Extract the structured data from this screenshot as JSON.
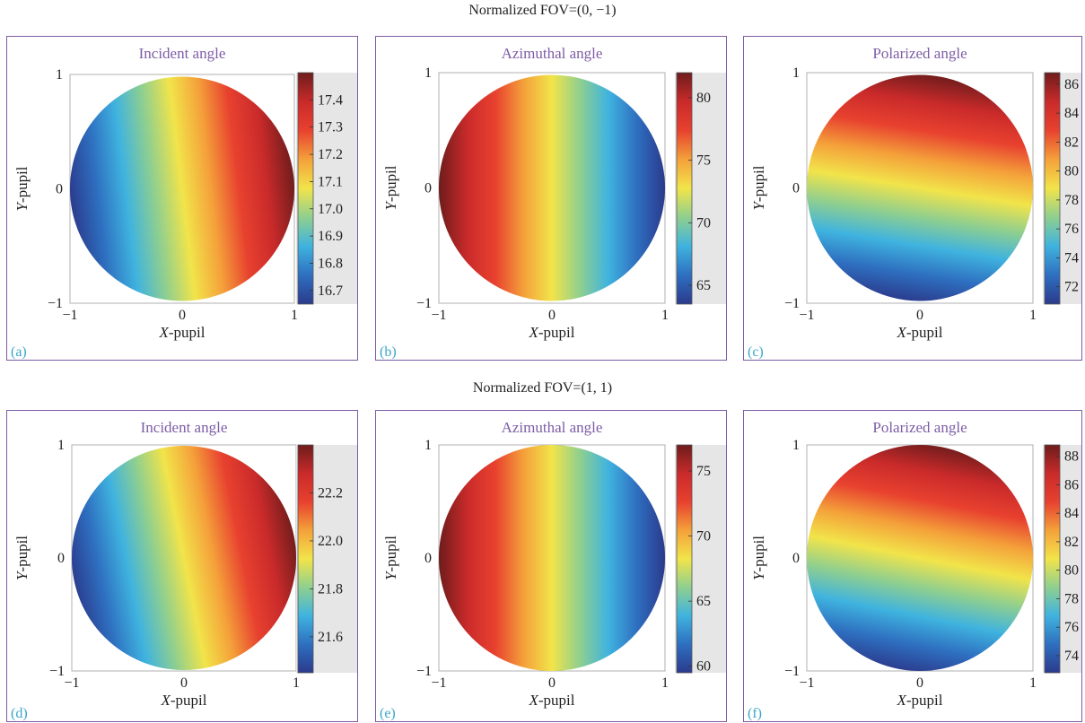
{
  "rows": [
    {
      "title": "Normalized FOV=(0, −1)"
    },
    {
      "title": "Normalized FOV=(1, 1)"
    }
  ],
  "chart_data": [
    {
      "type": "heatmap",
      "panel_label": "(a)",
      "title": "Incident angle",
      "xlabel_italic": "X",
      "xlabel_rest": "-pupil",
      "ylabel_italic": "Y",
      "ylabel_rest": "-pupil",
      "xlim": [
        -1,
        1
      ],
      "ylim": [
        -1,
        1
      ],
      "x_ticks": [
        "−1",
        "0",
        "1"
      ],
      "y_ticks": [
        "−1",
        "0",
        "1"
      ],
      "colorbar": {
        "min": 16.65,
        "max": 17.5,
        "ticks": [
          "16.7",
          "16.8",
          "16.9",
          "17.0",
          "17.1",
          "17.2",
          "17.3",
          "17.4"
        ],
        "tick_values": [
          16.7,
          16.8,
          16.9,
          17.0,
          17.1,
          17.2,
          17.3,
          17.4
        ]
      },
      "field": {
        "gradient": "x",
        "direction": "increasing",
        "tilt": 0.06
      }
    },
    {
      "type": "heatmap",
      "panel_label": "(b)",
      "title": "Azimuthal angle",
      "xlabel_italic": "X",
      "xlabel_rest": "-pupil",
      "ylabel_italic": "Y",
      "ylabel_rest": "-pupil",
      "xlim": [
        -1,
        1
      ],
      "ylim": [
        -1,
        1
      ],
      "x_ticks": [
        "−1",
        "0",
        "1"
      ],
      "y_ticks": [
        "−1",
        "0",
        "1"
      ],
      "colorbar": {
        "min": 63.5,
        "max": 82,
        "ticks": [
          "65",
          "70",
          "75",
          "80"
        ],
        "tick_values": [
          65,
          70,
          75,
          80
        ]
      },
      "field": {
        "gradient": "x",
        "direction": "decreasing",
        "tilt": 0.0
      }
    },
    {
      "type": "heatmap",
      "panel_label": "(c)",
      "title": "Polarized angle",
      "xlabel_italic": "X",
      "xlabel_rest": "-pupil",
      "ylabel_italic": "Y",
      "ylabel_rest": "-pupil",
      "xlim": [
        -1,
        1
      ],
      "ylim": [
        -1,
        1
      ],
      "x_ticks": [
        "−1",
        "0",
        "1"
      ],
      "y_ticks": [
        "−1",
        "0",
        "1"
      ],
      "colorbar": {
        "min": 70.8,
        "max": 86.8,
        "ticks": [
          "72",
          "74",
          "76",
          "78",
          "80",
          "82",
          "84",
          "86"
        ],
        "tick_values": [
          72,
          74,
          76,
          78,
          80,
          82,
          84,
          86
        ]
      },
      "field": {
        "gradient": "y",
        "direction": "increasing",
        "tilt": 0.08
      }
    },
    {
      "type": "heatmap",
      "panel_label": "(d)",
      "title": "Incident angle",
      "xlabel_italic": "X",
      "xlabel_rest": "-pupil",
      "ylabel_italic": "Y",
      "ylabel_rest": "-pupil",
      "xlim": [
        -1,
        1
      ],
      "ylim": [
        -1,
        1
      ],
      "x_ticks": [
        "−1",
        "0",
        "1"
      ],
      "y_ticks": [
        "−1",
        "0",
        "1"
      ],
      "colorbar": {
        "min": 21.45,
        "max": 22.4,
        "ticks": [
          "21.6",
          "21.8",
          "22.0",
          "22.2"
        ],
        "tick_values": [
          21.6,
          21.8,
          22.0,
          22.2
        ]
      },
      "field": {
        "gradient": "x",
        "direction": "increasing",
        "tilt": 0.1
      }
    },
    {
      "type": "heatmap",
      "panel_label": "(e)",
      "title": "Azimuthal angle",
      "xlabel_italic": "X",
      "xlabel_rest": "-pupil",
      "ylabel_italic": "Y",
      "ylabel_rest": "-pupil",
      "xlim": [
        -1,
        1
      ],
      "ylim": [
        -1,
        1
      ],
      "x_ticks": [
        "−1",
        "0",
        "1"
      ],
      "y_ticks": [
        "−1",
        "0",
        "1"
      ],
      "colorbar": {
        "min": 59.5,
        "max": 77,
        "ticks": [
          "60",
          "65",
          "70",
          "75"
        ],
        "tick_values": [
          60,
          65,
          70,
          75
        ]
      },
      "field": {
        "gradient": "x",
        "direction": "decreasing",
        "tilt": 0.0
      }
    },
    {
      "type": "heatmap",
      "panel_label": "(f)",
      "title": "Polarized angle",
      "xlabel_italic": "X",
      "xlabel_rest": "-pupil",
      "ylabel_italic": "Y",
      "ylabel_rest": "-pupil",
      "xlim": [
        -1,
        1
      ],
      "ylim": [
        -1,
        1
      ],
      "x_ticks": [
        "−1",
        "0",
        "1"
      ],
      "y_ticks": [
        "−1",
        "0",
        "1"
      ],
      "colorbar": {
        "min": 72.8,
        "max": 88.8,
        "ticks": [
          "74",
          "76",
          "78",
          "80",
          "82",
          "84",
          "86",
          "88"
        ],
        "tick_values": [
          74,
          76,
          78,
          80,
          82,
          84,
          86,
          88
        ]
      },
      "field": {
        "gradient": "y",
        "direction": "increasing",
        "tilt": 0.1
      }
    }
  ],
  "colors": {
    "frame": "#7d5ca6",
    "title": "#7d5ca6",
    "panel_label": "#3aa6c9",
    "colormap": [
      "#2b3a8c",
      "#2e6fc0",
      "#3fb3df",
      "#8fcf8f",
      "#f2e44a",
      "#f4a13a",
      "#e8412f",
      "#c92a2a",
      "#6e1c1c"
    ]
  }
}
